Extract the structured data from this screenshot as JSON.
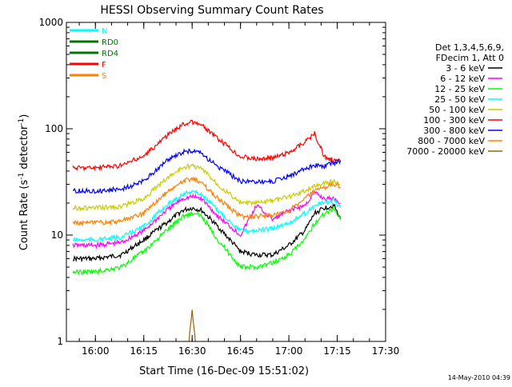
{
  "chart_data": {
    "type": "line",
    "title": "HESSI Observing Summary Count Rates",
    "xlabel": "Start Time (16-Dec-09 15:51:02)",
    "ylabel_main": "Count Rate (s",
    "ylabel_sup1": "-1",
    "ylabel_mid": " detector",
    "ylabel_sup2": "-1",
    "ylabel_end": ")",
    "y_scale": "log",
    "xlim": [
      "15:51",
      "17:30"
    ],
    "ylim": [
      1,
      1000
    ],
    "x_ticks": [
      "16:00",
      "16:15",
      "16:30",
      "16:45",
      "17:00",
      "17:15",
      "17:30"
    ],
    "y_ticks": [
      {
        "value": 1,
        "label": "1"
      },
      {
        "value": 10,
        "label": "10"
      },
      {
        "value": 100,
        "label": "100"
      },
      {
        "value": 1000,
        "label": "1000"
      }
    ],
    "legend_placement": "right",
    "legend_header": [
      "Det 1,3,4,5,6,9,",
      "FDecim 1, Att 0"
    ],
    "series": [
      {
        "name": "3 - 6 keV",
        "color": "#000000",
        "x": [
          "15:53",
          "15:55",
          "16:00",
          "16:08",
          "16:15",
          "16:22",
          "16:27",
          "16:30",
          "16:33",
          "16:38",
          "16:45",
          "16:50",
          "16:55",
          "17:00",
          "17:05",
          "17:08",
          "17:11",
          "17:14",
          "17:16"
        ],
        "y": [
          6,
          6,
          6,
          6.5,
          9,
          13,
          17,
          18,
          17,
          12,
          7,
          6.5,
          6.5,
          8,
          11,
          16,
          18,
          19,
          14
        ]
      },
      {
        "name": "6 - 12 keV",
        "color": "#ff00ff",
        "x": [
          "15:53",
          "15:55",
          "16:00",
          "16:08",
          "16:15",
          "16:22",
          "16:27",
          "16:30",
          "16:33",
          "16:38",
          "16:45",
          "16:50",
          "16:55",
          "17:00",
          "17:05",
          "17:08",
          "17:11",
          "17:14",
          "17:16"
        ],
        "y": [
          8,
          8,
          8,
          8.5,
          11,
          17,
          22,
          23,
          22,
          15,
          10,
          19,
          14,
          17,
          19,
          25,
          22,
          22,
          20
        ]
      },
      {
        "name": "12 - 25 keV",
        "color": "#00ff00",
        "x": [
          "15:53",
          "15:55",
          "16:00",
          "16:08",
          "16:15",
          "16:22",
          "16:27",
          "16:30",
          "16:33",
          "16:38",
          "16:45",
          "16:50",
          "16:55",
          "17:00",
          "17:05",
          "17:08",
          "17:11",
          "17:14",
          "17:16"
        ],
        "y": [
          4.5,
          4.5,
          4.5,
          5,
          7,
          11,
          15,
          16,
          15,
          9,
          5,
          5,
          5.5,
          6.5,
          9,
          13,
          16,
          18,
          14
        ]
      },
      {
        "name": "25 - 50 keV",
        "color": "#00ffff",
        "x": [
          "15:53",
          "15:55",
          "16:00",
          "16:08",
          "16:15",
          "16:22",
          "16:27",
          "16:30",
          "16:33",
          "16:38",
          "16:45",
          "16:50",
          "16:55",
          "17:00",
          "17:05",
          "17:08",
          "17:11",
          "17:14",
          "17:16"
        ],
        "y": [
          9,
          9,
          9,
          9.5,
          12,
          19,
          24,
          26,
          24,
          17,
          11,
          11,
          11.5,
          13,
          16,
          19,
          20,
          21,
          18
        ]
      },
      {
        "name": "50 - 100 keV",
        "color": "#cccc00",
        "x": [
          "15:53",
          "15:55",
          "16:00",
          "16:08",
          "16:15",
          "16:22",
          "16:27",
          "16:30",
          "16:33",
          "16:38",
          "16:45",
          "16:50",
          "16:55",
          "17:00",
          "17:05",
          "17:08",
          "17:11",
          "17:14",
          "17:16"
        ],
        "y": [
          18,
          18,
          18,
          18.5,
          22,
          34,
          43,
          45,
          42,
          30,
          20,
          20,
          21,
          23,
          26,
          29,
          31,
          32,
          30
        ]
      },
      {
        "name": "100 - 300 keV",
        "color": "#ff0000",
        "x": [
          "15:53",
          "15:55",
          "16:00",
          "16:08",
          "16:15",
          "16:22",
          "16:27",
          "16:30",
          "16:33",
          "16:38",
          "16:45",
          "16:50",
          "16:55",
          "17:00",
          "17:05",
          "17:08",
          "17:11",
          "17:14",
          "17:16"
        ],
        "y": [
          43,
          43,
          43,
          45,
          55,
          85,
          110,
          115,
          108,
          80,
          55,
          52,
          53,
          60,
          75,
          90,
          55,
          50,
          50
        ]
      },
      {
        "name": "300 - 800 keV",
        "color": "#0000ff",
        "x": [
          "15:53",
          "15:55",
          "16:00",
          "16:08",
          "16:15",
          "16:22",
          "16:27",
          "16:30",
          "16:33",
          "16:38",
          "16:45",
          "16:50",
          "16:55",
          "17:00",
          "17:05",
          "17:08",
          "17:11",
          "17:14",
          "17:16"
        ],
        "y": [
          26,
          26,
          26,
          27,
          32,
          50,
          60,
          62,
          58,
          44,
          32,
          32,
          32,
          36,
          42,
          45,
          44,
          48,
          50
        ]
      },
      {
        "name": "800 - 7000 keV",
        "color": "#ff8000",
        "x": [
          "15:53",
          "15:55",
          "16:00",
          "16:08",
          "16:15",
          "16:22",
          "16:27",
          "16:30",
          "16:33",
          "16:38",
          "16:45",
          "16:50",
          "16:55",
          "17:00",
          "17:05",
          "17:08",
          "17:11",
          "17:14",
          "17:16"
        ],
        "y": [
          13,
          13,
          13,
          13.5,
          16,
          25,
          32,
          34,
          31,
          22,
          15,
          15,
          15.5,
          17,
          22,
          26,
          28,
          30,
          28
        ]
      },
      {
        "name": "7000 - 20000 keV",
        "color": "#996600",
        "x": [
          "16:29",
          "16:30",
          "16:31"
        ],
        "y": [
          1,
          2,
          1
        ]
      }
    ],
    "flags": [
      {
        "label": "N",
        "color": "#00ffff"
      },
      {
        "label": "RD0",
        "color": "#007700"
      },
      {
        "label": "RD4",
        "color": "#007700"
      },
      {
        "label": "F",
        "color": "#ff0000"
      },
      {
        "label": "S",
        "color": "#ff8000"
      }
    ],
    "grid": false
  },
  "footer": {
    "timestamp": "14-May-2010 04:39"
  }
}
